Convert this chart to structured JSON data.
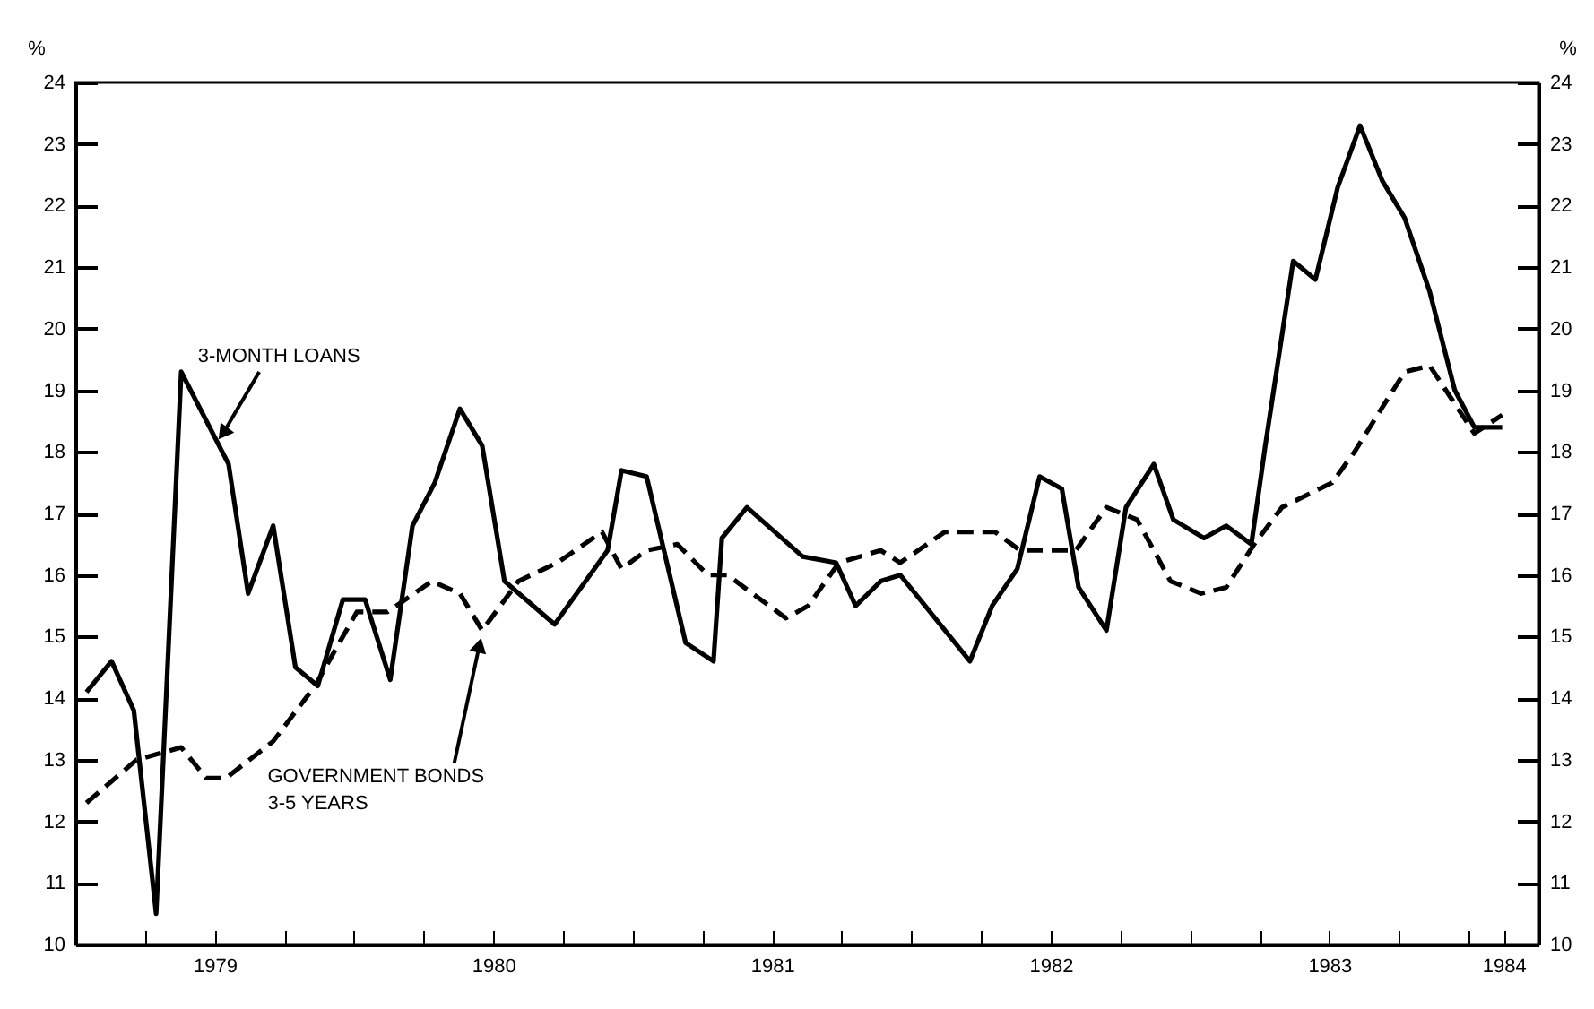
{
  "chart_data": {
    "type": "line",
    "ylabel": "%",
    "y2label": "%",
    "xlim": [
      1979,
      1984.25
    ],
    "xticks": [
      {
        "value": 1979.25,
        "label": null
      },
      {
        "value": 1979.5,
        "label": "1979"
      },
      {
        "value": 1979.75,
        "label": null
      },
      {
        "value": 1980,
        "label": null
      },
      {
        "value": 1980.25,
        "label": null
      },
      {
        "value": 1980.5,
        "label": "1980"
      },
      {
        "value": 1980.75,
        "label": null
      },
      {
        "value": 1981,
        "label": null
      },
      {
        "value": 1981.25,
        "label": null
      },
      {
        "value": 1981.5,
        "label": "1981"
      },
      {
        "value": 1981.75,
        "label": null
      },
      {
        "value": 1982,
        "label": null
      },
      {
        "value": 1982.25,
        "label": null
      },
      {
        "value": 1982.5,
        "label": "1982"
      },
      {
        "value": 1982.75,
        "label": null
      },
      {
        "value": 1983,
        "label": null
      },
      {
        "value": 1983.25,
        "label": null
      },
      {
        "value": 1983.5,
        "label": "1983"
      },
      {
        "value": 1983.75,
        "label": null
      },
      {
        "value": 1984,
        "label": null
      },
      {
        "value": 1984.125,
        "label": "1984"
      }
    ],
    "ylim": [
      10,
      24
    ],
    "yticks": [
      10,
      11,
      12,
      13,
      14,
      15,
      16,
      17,
      18,
      19,
      20,
      21,
      22,
      23,
      24
    ],
    "y2lim": [
      10,
      24
    ],
    "y2ticks": [
      10,
      11,
      12,
      13,
      14,
      15,
      16,
      17,
      18,
      19,
      20,
      21,
      22,
      23,
      24
    ],
    "legend": false,
    "grid": false,
    "marker": "none",
    "series": [
      {
        "name": "3-MONTH LOANS",
        "color": "#000000",
        "line_style": "solid",
        "x": [
          1979.04,
          1979.13,
          1979.21,
          1979.29,
          1979.38,
          1979.55,
          1979.62,
          1979.71,
          1979.79,
          1979.87,
          1979.96,
          1980.04,
          1980.13,
          1980.21,
          1980.29,
          1980.38,
          1980.46,
          1980.54,
          1980.72,
          1980.91,
          1980.96,
          1981.05,
          1981.19,
          1981.29,
          1981.32,
          1981.41,
          1981.61,
          1981.73,
          1981.8,
          1981.89,
          1981.96,
          1982.21,
          1982.29,
          1982.38,
          1982.46,
          1982.54,
          1982.6,
          1982.7,
          1982.77,
          1982.87,
          1982.94,
          1983.05,
          1983.13,
          1983.22,
          1983.27,
          1983.37,
          1983.45,
          1983.53,
          1983.61,
          1983.69,
          1983.77,
          1983.86,
          1983.95,
          1984.02,
          1984.12
        ],
        "values": [
          14.1,
          14.6,
          13.8,
          10.5,
          19.3,
          17.8,
          15.7,
          16.8,
          14.5,
          14.2,
          15.6,
          15.6,
          14.3,
          16.8,
          17.5,
          18.7,
          18.1,
          15.9,
          15.2,
          16.4,
          17.7,
          17.6,
          14.9,
          14.6,
          16.6,
          17.1,
          16.3,
          16.2,
          15.5,
          15.9,
          16,
          14.6,
          15.5,
          16.1,
          17.6,
          17.4,
          15.8,
          15.1,
          17.1,
          17.8,
          16.9,
          16.6,
          16.8,
          16.5,
          18.1,
          21.1,
          20.8,
          22.3,
          23.3,
          22.4,
          21.8,
          20.6,
          19,
          18.4,
          18.4
        ]
      },
      {
        "name": "GOVERNMENT BONDS\n3-5 YEARS",
        "color": "#000000",
        "line_style": "dashed",
        "x": [
          1979.04,
          1979.22,
          1979.38,
          1979.47,
          1979.54,
          1979.71,
          1979.86,
          1980.01,
          1980.12,
          1980.28,
          1980.38,
          1980.46,
          1980.59,
          1980.73,
          1980.89,
          1980.96,
          1981.05,
          1981.16,
          1981.27,
          1981.34,
          1981.55,
          1981.63,
          1981.74,
          1981.89,
          1981.96,
          1982.12,
          1982.3,
          1982.39,
          1982.59,
          1982.7,
          1982.81,
          1982.93,
          1983.04,
          1983.13,
          1983.23,
          1983.33,
          1983.51,
          1983.59,
          1983.77,
          1983.86,
          1984.02,
          1984.12
        ],
        "values": [
          12.3,
          13,
          13.2,
          12.7,
          12.7,
          13.3,
          14.2,
          15.4,
          15.4,
          15.9,
          15.7,
          15.1,
          15.9,
          16.2,
          16.7,
          16.1,
          16.4,
          16.5,
          16,
          16,
          15.3,
          15.5,
          16.2,
          16.4,
          16.2,
          16.7,
          16.7,
          16.4,
          16.4,
          17.1,
          16.9,
          15.9,
          15.7,
          15.8,
          16.5,
          17.1,
          17.5,
          18,
          19.3,
          19.4,
          18.3,
          18.6
        ]
      }
    ]
  }
}
